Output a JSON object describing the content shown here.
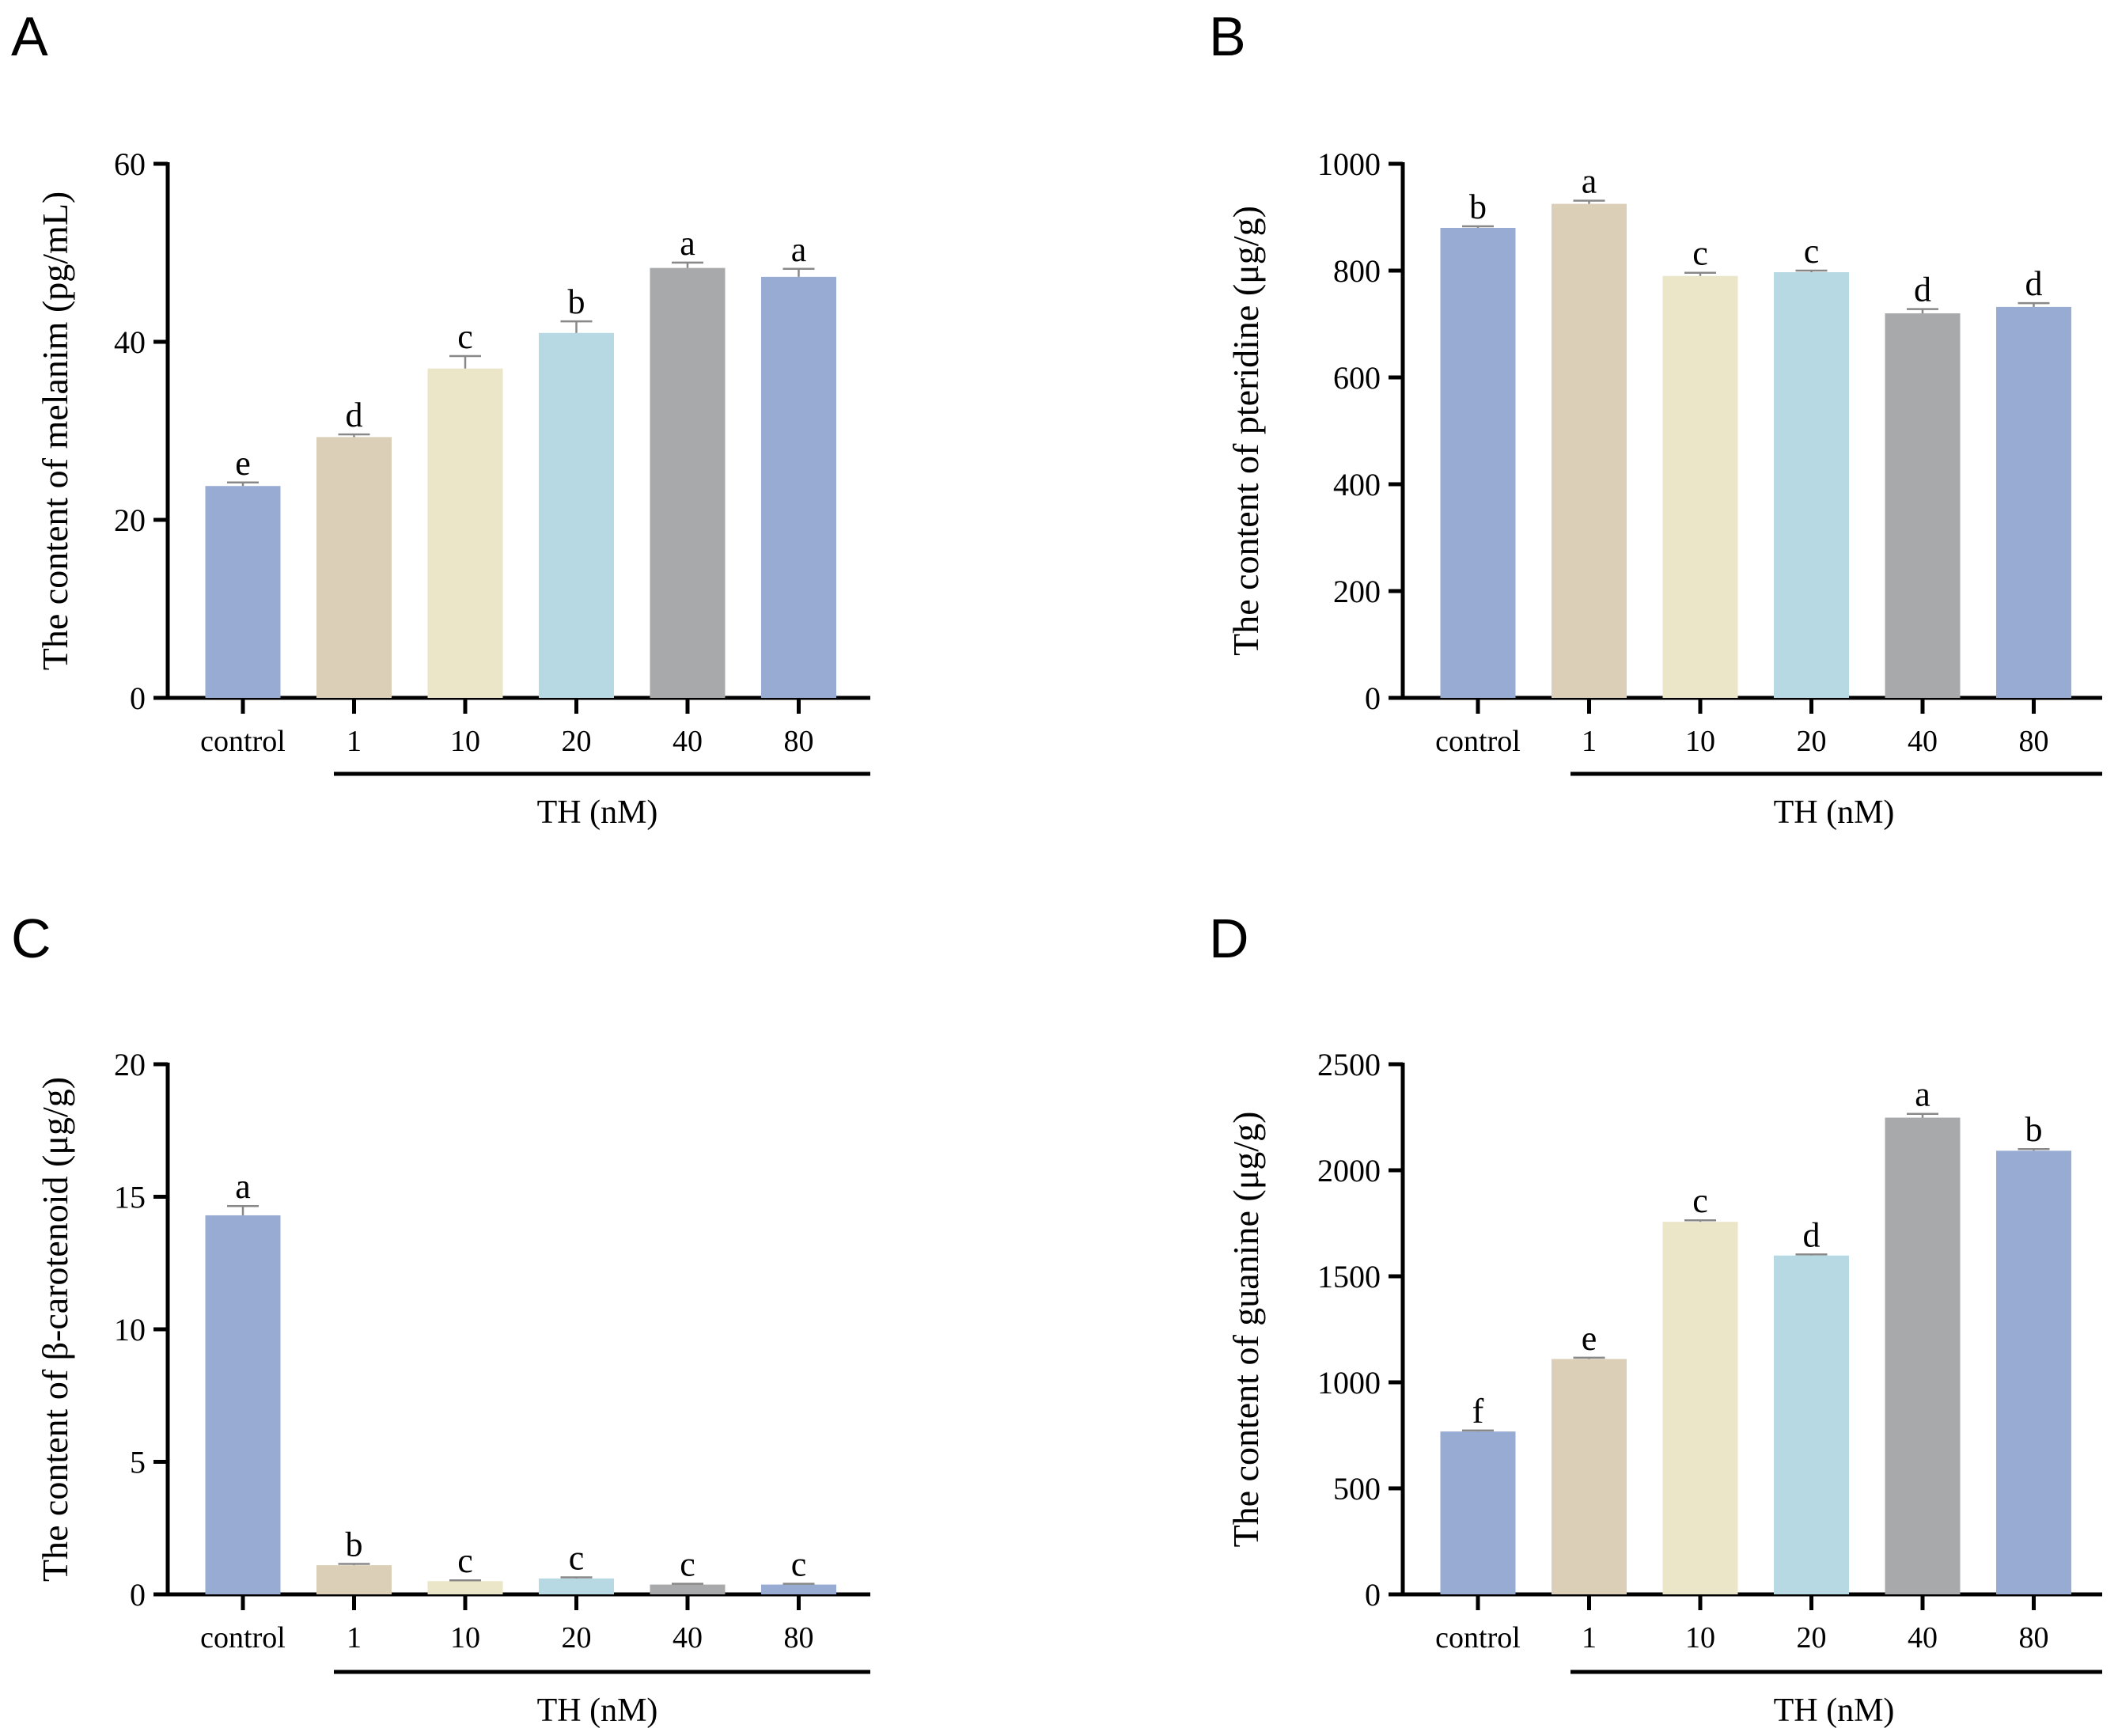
{
  "chart_data": [
    {
      "panel": "A",
      "type": "bar",
      "ylabel": "The content of melanim  (pg/mL)",
      "ylim": [
        0,
        60
      ],
      "yticks": [
        0,
        20,
        40,
        60
      ],
      "categories": [
        "control",
        "1",
        "10",
        "20",
        "40",
        "80"
      ],
      "values": [
        23.8,
        29.3,
        37.0,
        41.0,
        48.3,
        47.3
      ],
      "errors": [
        0.4,
        0.3,
        1.4,
        1.3,
        0.6,
        0.9
      ],
      "labels": [
        "e",
        "d",
        "c",
        "b",
        "a",
        "a"
      ],
      "colors": [
        "#97abd3",
        "#dccfb8",
        "#ece6c9",
        "#b7d9e3",
        "#a8a9ab",
        "#97abd3"
      ],
      "group_label": "TH  (nM)"
    },
    {
      "panel": "B",
      "type": "bar",
      "ylabel": "The content of pteridine  (μg/g)",
      "ylim": [
        0,
        1000
      ],
      "yticks": [
        0,
        200,
        400,
        600,
        800,
        1000
      ],
      "categories": [
        "control",
        "1",
        "10",
        "20",
        "40",
        "80"
      ],
      "values": [
        880,
        925,
        790,
        797,
        720,
        732
      ],
      "errors": [
        3,
        6,
        6,
        3,
        8,
        7
      ],
      "labels": [
        "b",
        "a",
        "c",
        "c",
        "d",
        "d"
      ],
      "colors": [
        "#97abd3",
        "#dccfb8",
        "#ece6c9",
        "#b7d9e3",
        "#a8a9ab",
        "#97abd3"
      ],
      "group_label": "TH  (nM)"
    },
    {
      "panel": "C",
      "type": "bar",
      "ylabel": "The content of β-carotenoid (μg/g)",
      "ylim": [
        0,
        20
      ],
      "yticks": [
        0,
        5,
        10,
        15,
        20
      ],
      "categories": [
        "control",
        "1",
        "10",
        "20",
        "40",
        "80"
      ],
      "values": [
        14.3,
        1.1,
        0.5,
        0.6,
        0.37,
        0.37
      ],
      "errors": [
        0.35,
        0.05,
        0.03,
        0.04,
        0.03,
        0.03
      ],
      "labels": [
        "a",
        "b",
        "c",
        "c",
        "c",
        "c"
      ],
      "colors": [
        "#97abd3",
        "#dccfb8",
        "#ece6c9",
        "#b7d9e3",
        "#a8a9ab",
        "#97abd3"
      ],
      "group_label": "TH  (nM)"
    },
    {
      "panel": "D",
      "type": "bar",
      "ylabel": "The content of guanine (μg/g)",
      "ylim": [
        0,
        2500
      ],
      "yticks": [
        0,
        500,
        1000,
        1500,
        2000,
        2500
      ],
      "categories": [
        "control",
        "1",
        "10",
        "20",
        "40",
        "80"
      ],
      "values": [
        768,
        1110,
        1757,
        1598,
        2248,
        2092
      ],
      "errors": [
        5,
        6,
        7,
        5,
        18,
        8
      ],
      "labels": [
        "f",
        "e",
        "c",
        "d",
        "a",
        "b"
      ],
      "colors": [
        "#97abd3",
        "#dccfb8",
        "#ece6c9",
        "#b7d9e3",
        "#a8a9ab",
        "#97abd3"
      ],
      "group_label": "TH  (nM)"
    }
  ]
}
